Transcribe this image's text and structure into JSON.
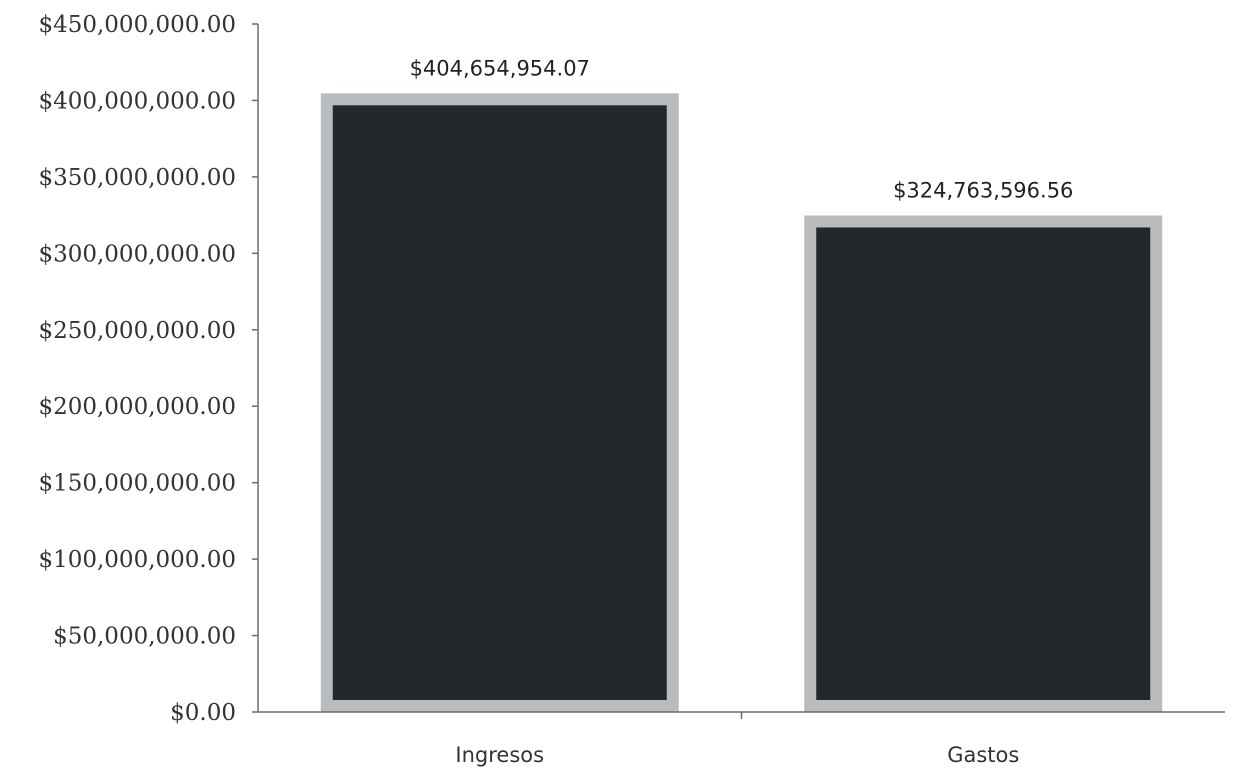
{
  "chart_data": {
    "type": "bar",
    "title": "",
    "xlabel": "",
    "ylabel": "",
    "categories": [
      "Ingresos",
      "Gastos"
    ],
    "series": [
      {
        "values": [
          404654954.07,
          324763596.56
        ],
        "data_labels": [
          "$404,654,954.07",
          "$324,763,596.56"
        ]
      }
    ],
    "ylim": [
      0,
      450000000
    ],
    "ytick_values": [
      0,
      50000000,
      100000000,
      150000000,
      200000000,
      250000000,
      300000000,
      350000000,
      400000000,
      450000000
    ],
    "ytick_labels": [
      "$0.00",
      "$50,000,000.00",
      "$100,000,000.00",
      "$150,000,000.00",
      "$200,000,000.00",
      "$250,000,000.00",
      "$300,000,000.00",
      "$350,000,000.00",
      "$400,000,000.00",
      "$450,000,000.00"
    ],
    "grid": false,
    "legend": "none",
    "colors": {
      "bar_fill": "#24282d",
      "bar_border": "#b9bcbe",
      "axis": "#6b6b6b"
    }
  }
}
